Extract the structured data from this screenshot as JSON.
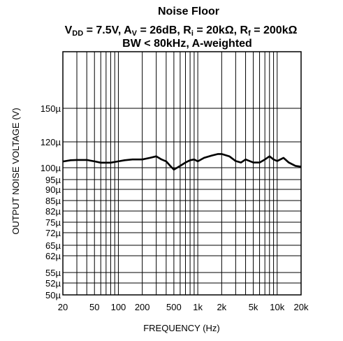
{
  "chart_data": {
    "type": "line",
    "title": "Noise Floor",
    "subtitle_line2": {
      "vdd_prefix": "V",
      "vdd_sub": "DD",
      "vdd_value": " = 7.5V, A",
      "av_sub": "V",
      "av_value": " = 26dB, R",
      "ri_sub": "i",
      "ri_value": " = 20kΩ, R",
      "rf_sub": "f",
      "rf_value": " = 200kΩ"
    },
    "subtitle_line3": "BW < 80kHz, A-weighted",
    "xlabel": "FREQUENCY (Hz)",
    "ylabel": "OUTPUT NOISE VOLTAGE (V)",
    "x_scale": "log",
    "xlim": [
      20,
      20000
    ],
    "x_ticks": [
      {
        "value": 20,
        "label": "20"
      },
      {
        "value": 50,
        "label": "50"
      },
      {
        "value": 100,
        "label": "100"
      },
      {
        "value": 200,
        "label": "200"
      },
      {
        "value": 500,
        "label": "500"
      },
      {
        "value": 1000,
        "label": "1k"
      },
      {
        "value": 2000,
        "label": "2k"
      },
      {
        "value": 5000,
        "label": "5k"
      },
      {
        "value": 10000,
        "label": "10k"
      },
      {
        "value": 20000,
        "label": "20k"
      }
    ],
    "x_grid": [
      20,
      30,
      40,
      50,
      60,
      70,
      80,
      90,
      100,
      200,
      300,
      400,
      500,
      600,
      700,
      800,
      900,
      1000,
      2000,
      3000,
      4000,
      5000,
      6000,
      7000,
      8000,
      9000,
      10000,
      20000
    ],
    "y_ticks": [
      {
        "value": 50,
        "label": "50µ"
      },
      {
        "value": 52,
        "label": "52µ"
      },
      {
        "value": 55,
        "label": "55µ"
      },
      {
        "value": 62,
        "label": "62µ"
      },
      {
        "value": 65,
        "label": "65µ"
      },
      {
        "value": 72,
        "label": "72µ"
      },
      {
        "value": 75,
        "label": "75µ"
      },
      {
        "value": 82,
        "label": "82µ"
      },
      {
        "value": 85,
        "label": "85µ"
      },
      {
        "value": 90,
        "label": "90µ"
      },
      {
        "value": 95,
        "label": "95µ"
      },
      {
        "value": 100,
        "label": "100µ"
      },
      {
        "value": 120,
        "label": "120µ"
      },
      {
        "value": 150,
        "label": "150µ"
      }
    ],
    "y_unit": "µV",
    "grid": true,
    "series": [
      {
        "x": [
          20,
          25,
          30,
          40,
          50,
          60,
          70,
          80,
          100,
          120,
          150,
          200,
          250,
          300,
          350,
          400,
          450,
          500,
          600,
          700,
          800,
          900,
          1000,
          1200,
          1500,
          1800,
          2000,
          2500,
          3000,
          3500,
          4000,
          5000,
          6000,
          7000,
          8000,
          9000,
          10000,
          12000,
          14000,
          17000,
          20000
        ],
        "y": [
          104.8,
          105.8,
          106.0,
          106.0,
          104.9,
          103.9,
          103.9,
          103.9,
          104.9,
          105.8,
          106.4,
          106.4,
          107.6,
          108.8,
          106.4,
          104.9,
          101.4,
          99.2,
          101.4,
          104.0,
          105.8,
          106.4,
          104.9,
          107.6,
          109.4,
          110.6,
          110.6,
          108.8,
          105.2,
          104.0,
          106.4,
          104.0,
          104.0,
          106.4,
          108.8,
          106.4,
          105.2,
          107.6,
          104.0,
          101.4,
          100.8
        ]
      }
    ]
  }
}
